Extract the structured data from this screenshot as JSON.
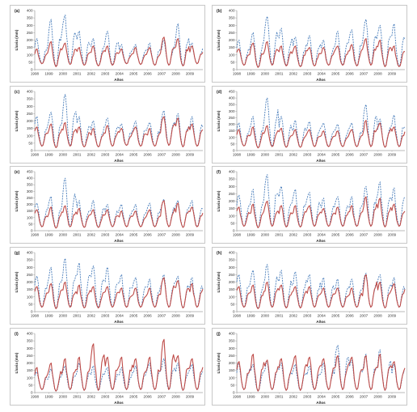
{
  "figure": {
    "panel_labels": [
      "(a)",
      "(b)",
      "(c)",
      "(d)",
      "(e)",
      "(f)",
      "(g)",
      "(h)",
      "(i)",
      "(j)"
    ],
    "xlabel": "Años",
    "ylabel": "Lluvia (mm)",
    "series_colors": {
      "observed": "#4a7ebb",
      "simulated": "#be4b48"
    }
  },
  "chart_data": [
    {
      "type": "line",
      "label": "(a)",
      "xlabel": "Años",
      "ylabel": "Lluvia (mm)",
      "xlim": [
        1998,
        2010
      ],
      "ylim": [
        0,
        400
      ],
      "xticks": [
        "1998",
        "1999",
        "2000",
        "2001",
        "2002",
        "2003",
        "2004",
        "2005",
        "2006",
        "2007",
        "2008",
        "2009"
      ],
      "yticks": [
        0,
        50,
        100,
        150,
        200,
        250,
        300,
        350,
        400
      ],
      "series": [
        {
          "style": "dashed",
          "color": "#4a7ebb",
          "yearly_peaks": [
            210,
            340,
            370,
            260,
            210,
            260,
            170,
            170,
            180,
            200,
            310,
            180
          ],
          "yearly_mins": [
            40,
            20,
            35,
            30,
            25,
            30,
            40,
            35,
            30,
            30,
            25,
            40
          ]
        },
        {
          "style": "solid",
          "color": "#be4b48",
          "yearly_peaks": [
            140,
            190,
            180,
            150,
            160,
            160,
            140,
            150,
            150,
            220,
            210,
            160
          ],
          "yearly_mins": [
            40,
            20,
            35,
            30,
            25,
            30,
            40,
            35,
            30,
            30,
            25,
            40
          ]
        }
      ]
    },
    {
      "type": "line",
      "label": "(b)",
      "xlabel": "Años",
      "ylabel": "Lluvia (mm)",
      "xlim": [
        1998,
        2010
      ],
      "ylim": [
        0,
        400
      ],
      "xticks": [
        "1998",
        "1999",
        "2000",
        "2001",
        "2002",
        "2003",
        "2004",
        "2005",
        "2006",
        "2007",
        "2008",
        "2009"
      ],
      "yticks": [
        0,
        50,
        100,
        150,
        200,
        250,
        300,
        350,
        400
      ],
      "series": [
        {
          "style": "dashed",
          "color": "#4a7ebb",
          "yearly_peaks": [
            200,
            250,
            360,
            280,
            220,
            230,
            200,
            260,
            270,
            340,
            300,
            310
          ],
          "yearly_mins": [
            30,
            15,
            30,
            25,
            20,
            25,
            30,
            30,
            25,
            30,
            20,
            20
          ]
        },
        {
          "style": "solid",
          "color": "#be4b48",
          "yearly_peaks": [
            140,
            180,
            190,
            160,
            160,
            150,
            150,
            160,
            170,
            210,
            200,
            160
          ],
          "yearly_mins": [
            30,
            15,
            30,
            25,
            20,
            25,
            30,
            30,
            25,
            30,
            20,
            20
          ]
        }
      ]
    },
    {
      "type": "line",
      "label": "(c)",
      "xlabel": "Años",
      "ylabel": "Lluvia (mm)",
      "xlim": [
        1998,
        2010
      ],
      "ylim": [
        0,
        400
      ],
      "xticks": [
        "1998",
        "1999",
        "2000",
        "2001",
        "2002",
        "2003",
        "2004",
        "2005",
        "2006",
        "2007",
        "2008",
        "2009"
      ],
      "yticks": [
        0,
        50,
        100,
        150,
        200,
        250,
        300,
        350,
        400
      ],
      "series": [
        {
          "style": "dashed",
          "color": "#4a7ebb",
          "yearly_peaks": [
            230,
            260,
            380,
            230,
            200,
            220,
            180,
            200,
            190,
            270,
            250,
            230
          ],
          "yearly_mins": [
            30,
            20,
            30,
            25,
            25,
            30,
            35,
            30,
            30,
            35,
            25,
            30
          ]
        },
        {
          "style": "solid",
          "color": "#be4b48",
          "yearly_peaks": [
            160,
            180,
            190,
            160,
            150,
            170,
            150,
            160,
            150,
            230,
            220,
            180
          ],
          "yearly_mins": [
            30,
            20,
            30,
            25,
            25,
            30,
            35,
            30,
            30,
            35,
            25,
            30
          ]
        }
      ]
    },
    {
      "type": "line",
      "label": "(d)",
      "xlabel": "Años",
      "ylabel": "Lluvia (mm)",
      "xlim": [
        1998,
        2010
      ],
      "ylim": [
        0,
        450
      ],
      "xticks": [
        "1998",
        "1999",
        "2000",
        "2001",
        "2002",
        "2003",
        "2004",
        "2005",
        "2006",
        "2007",
        "2008",
        "2009"
      ],
      "yticks": [
        0,
        50,
        100,
        150,
        200,
        250,
        300,
        350,
        400,
        450
      ],
      "series": [
        {
          "style": "dashed",
          "color": "#4a7ebb",
          "yearly_peaks": [
            210,
            260,
            400,
            260,
            230,
            220,
            210,
            200,
            210,
            350,
            240,
            270
          ],
          "yearly_mins": [
            35,
            20,
            30,
            25,
            25,
            30,
            30,
            30,
            30,
            30,
            25,
            30
          ]
        },
        {
          "style": "solid",
          "color": "#be4b48",
          "yearly_peaks": [
            160,
            180,
            190,
            170,
            160,
            160,
            150,
            150,
            160,
            230,
            210,
            180
          ],
          "yearly_mins": [
            35,
            20,
            30,
            25,
            25,
            30,
            30,
            30,
            30,
            30,
            25,
            30
          ]
        }
      ]
    },
    {
      "type": "line",
      "label": "(e)",
      "xlabel": "Años",
      "ylabel": "Lluvia (mm)",
      "xlim": [
        1998,
        2010
      ],
      "ylim": [
        0,
        450
      ],
      "xticks": [
        "1998",
        "1999",
        "2000",
        "2001",
        "2002",
        "2003",
        "2004",
        "2005",
        "2006",
        "2007",
        "2008",
        "2009"
      ],
      "yticks": [
        0,
        50,
        100,
        150,
        200,
        250,
        300,
        350,
        400,
        450
      ],
      "series": [
        {
          "style": "dashed",
          "color": "#4a7ebb",
          "yearly_peaks": [
            210,
            260,
            400,
            230,
            230,
            200,
            200,
            200,
            210,
            240,
            230,
            230
          ],
          "yearly_mins": [
            30,
            20,
            30,
            25,
            25,
            30,
            30,
            30,
            30,
            30,
            25,
            30
          ]
        },
        {
          "style": "solid",
          "color": "#be4b48",
          "yearly_peaks": [
            160,
            180,
            190,
            170,
            160,
            160,
            150,
            150,
            160,
            230,
            210,
            180
          ],
          "yearly_mins": [
            30,
            20,
            30,
            25,
            25,
            30,
            30,
            30,
            30,
            30,
            25,
            30
          ]
        }
      ]
    },
    {
      "type": "line",
      "label": "(f)",
      "xlabel": "Años",
      "ylabel": "Lluvia (mm)",
      "xlim": [
        1998,
        2010
      ],
      "ylim": [
        0,
        400
      ],
      "xticks": [
        "1998",
        "1999",
        "2000",
        "2001",
        "2002",
        "2003",
        "2004",
        "2005",
        "2006",
        "2007",
        "2008",
        "2009"
      ],
      "yticks": [
        0,
        50,
        100,
        150,
        200,
        250,
        300,
        350,
        400
      ],
      "series": [
        {
          "style": "dashed",
          "color": "#4a7ebb",
          "yearly_peaks": [
            240,
            280,
            380,
            300,
            280,
            260,
            220,
            230,
            230,
            300,
            330,
            290
          ],
          "yearly_mins": [
            30,
            20,
            30,
            25,
            25,
            30,
            30,
            30,
            30,
            30,
            25,
            30
          ]
        },
        {
          "style": "solid",
          "color": "#be4b48",
          "yearly_peaks": [
            160,
            180,
            200,
            170,
            170,
            170,
            150,
            160,
            170,
            230,
            220,
            180
          ],
          "yearly_mins": [
            30,
            20,
            30,
            25,
            25,
            30,
            30,
            30,
            30,
            30,
            25,
            30
          ]
        }
      ]
    },
    {
      "type": "line",
      "label": "(g)",
      "xlabel": "Años",
      "ylabel": "Lluvia (mm)",
      "xlim": [
        1998,
        2010
      ],
      "ylim": [
        0,
        400
      ],
      "xticks": [
        "1998",
        "1999",
        "2000",
        "2001",
        "2002",
        "2003",
        "2004",
        "2005",
        "2006",
        "2007",
        "2008",
        "2009"
      ],
      "yticks": [
        0,
        50,
        100,
        150,
        200,
        250,
        300,
        350,
        400
      ],
      "series": [
        {
          "style": "dashed",
          "color": "#4a7ebb",
          "yearly_peaks": [
            240,
            300,
            360,
            330,
            310,
            300,
            250,
            230,
            220,
            250,
            240,
            230
          ],
          "yearly_mins": [
            30,
            20,
            30,
            25,
            25,
            30,
            30,
            30,
            30,
            30,
            25,
            30
          ]
        },
        {
          "style": "solid",
          "color": "#be4b48",
          "yearly_peaks": [
            170,
            190,
            200,
            180,
            170,
            170,
            160,
            160,
            160,
            230,
            210,
            190
          ],
          "yearly_mins": [
            30,
            20,
            30,
            25,
            25,
            30,
            30,
            30,
            30,
            30,
            25,
            30
          ]
        }
      ]
    },
    {
      "type": "line",
      "label": "(h)",
      "xlabel": "Años",
      "ylabel": "Lluvia (mm)",
      "xlim": [
        1998,
        2010
      ],
      "ylim": [
        0,
        400
      ],
      "xticks": [
        "1998",
        "1999",
        "2000",
        "2001",
        "2002",
        "2003",
        "2004",
        "2005",
        "2006",
        "2007",
        "2008",
        "2009"
      ],
      "yticks": [
        0,
        50,
        100,
        150,
        200,
        250,
        300,
        350,
        400
      ],
      "series": [
        {
          "style": "dashed",
          "color": "#4a7ebb",
          "yearly_peaks": [
            250,
            280,
            320,
            280,
            270,
            250,
            230,
            220,
            220,
            260,
            250,
            230
          ],
          "yearly_mins": [
            30,
            20,
            30,
            25,
            25,
            30,
            30,
            30,
            30,
            30,
            25,
            30
          ]
        },
        {
          "style": "solid",
          "color": "#be4b48",
          "yearly_peaks": [
            170,
            180,
            200,
            180,
            170,
            170,
            160,
            160,
            160,
            250,
            200,
            190
          ],
          "yearly_mins": [
            30,
            20,
            30,
            25,
            25,
            30,
            30,
            30,
            30,
            30,
            25,
            30
          ]
        }
      ]
    },
    {
      "type": "line",
      "label": "(i)",
      "xlabel": "Años",
      "ylabel": "Lluvia (mm)",
      "xlim": [
        1998,
        2010
      ],
      "ylim": [
        0,
        400
      ],
      "xticks": [
        "1998",
        "1999",
        "2000",
        "2001",
        "2002",
        "2003",
        "2004",
        "2005",
        "2006",
        "2007",
        "2008",
        "2009"
      ],
      "yticks": [
        0,
        50,
        100,
        150,
        200,
        250,
        300,
        350,
        400
      ],
      "series": [
        {
          "style": "dashed",
          "color": "#4a7ebb",
          "yearly_peaks": [
            140,
            160,
            180,
            200,
            180,
            170,
            170,
            180,
            200,
            230,
            200,
            190
          ],
          "yearly_mins": [
            20,
            10,
            20,
            15,
            15,
            20,
            20,
            20,
            20,
            20,
            15,
            20
          ]
        },
        {
          "style": "solid",
          "color": "#be4b48",
          "yearly_peaks": [
            170,
            200,
            230,
            240,
            330,
            240,
            240,
            230,
            240,
            360,
            250,
            230
          ],
          "yearly_mins": [
            20,
            10,
            20,
            15,
            15,
            20,
            20,
            20,
            20,
            20,
            15,
            20
          ]
        }
      ]
    },
    {
      "type": "line",
      "label": "(j)",
      "xlabel": "Años",
      "ylabel": "Lluvia (mm)",
      "xlim": [
        1998,
        2010
      ],
      "ylim": [
        0,
        400
      ],
      "xticks": [
        "1998",
        "1999",
        "2000",
        "2001",
        "2002",
        "2003",
        "2004",
        "2005",
        "2006",
        "2007",
        "2008",
        "2009"
      ],
      "yticks": [
        0,
        50,
        100,
        150,
        200,
        250,
        300,
        350,
        400
      ],
      "series": [
        {
          "style": "dashed",
          "color": "#4a7ebb",
          "yearly_peaks": [
            200,
            190,
            210,
            200,
            190,
            180,
            200,
            320,
            220,
            260,
            290,
            190
          ],
          "yearly_mins": [
            20,
            10,
            20,
            15,
            15,
            20,
            20,
            20,
            20,
            20,
            15,
            20
          ]
        },
        {
          "style": "solid",
          "color": "#be4b48",
          "yearly_peaks": [
            210,
            260,
            220,
            230,
            250,
            240,
            230,
            250,
            240,
            250,
            260,
            210
          ],
          "yearly_mins": [
            20,
            10,
            20,
            15,
            15,
            20,
            20,
            20,
            20,
            20,
            15,
            20
          ]
        }
      ]
    }
  ]
}
